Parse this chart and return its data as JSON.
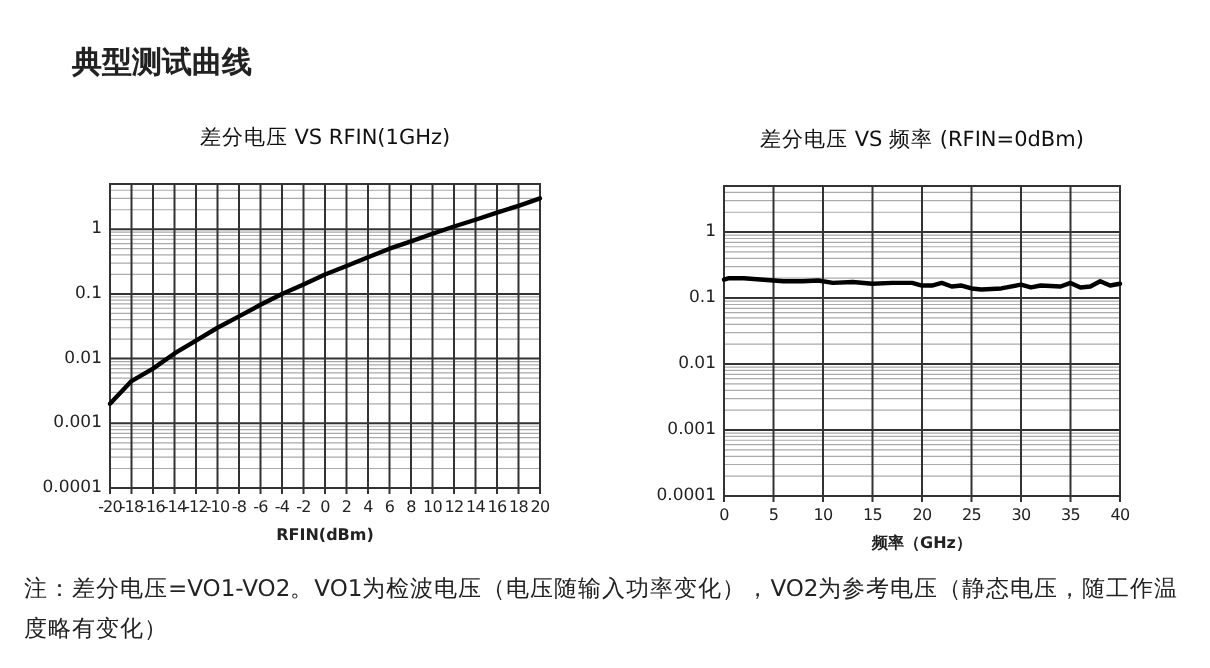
{
  "chart_data": [
    {
      "type": "line",
      "title": "差分电压 VS RFIN(1GHz)",
      "xlabel": "RFIN(dBm)",
      "log": "y",
      "grid": true,
      "marker": "none",
      "line_style": "solid",
      "annotations": [
        "典型测试曲线",
        "注：差分电压=VO1-VO2。VO1为检波电压（电压随输入功率变化），VO2为参考电压（静态电压，随工作温度略有变化）"
      ],
      "xlim": [
        -20,
        20
      ],
      "xticks": [
        -20,
        -18,
        -16,
        -14,
        -12,
        -10,
        -8,
        -6,
        -4,
        -2,
        0,
        2,
        4,
        6,
        8,
        10,
        12,
        14,
        16,
        18,
        20
      ],
      "ylim": [
        0.0001,
        5
      ],
      "yticks": [
        0.0001,
        0.001,
        0.01,
        0.1,
        1
      ],
      "x": [
        -20,
        -18,
        -16,
        -14,
        -12,
        -10,
        -8,
        -6,
        -4,
        -2,
        0,
        2,
        4,
        6,
        8,
        10,
        12,
        14,
        16,
        18,
        20
      ],
      "series": [
        {
          "color": "#000000",
          "values": [
            0.002,
            0.0045,
            0.007,
            0.012,
            0.019,
            0.03,
            0.045,
            0.068,
            0.1,
            0.14,
            0.2,
            0.27,
            0.37,
            0.5,
            0.65,
            0.85,
            1.1,
            1.4,
            1.8,
            2.3,
            3
          ]
        }
      ]
    },
    {
      "type": "line",
      "title": "差分电压 VS 频率 (RFIN=0dBm)",
      "xlabel": "频率（GHz）",
      "log": "y",
      "grid": true,
      "marker": "none",
      "line_style": "solid",
      "xlim": [
        0,
        40
      ],
      "xticks": [
        0,
        5,
        10,
        15,
        20,
        25,
        30,
        35,
        40
      ],
      "ylim": [
        0.0001,
        5
      ],
      "yticks": [
        0.0001,
        0.001,
        0.01,
        0.1,
        1
      ],
      "x": [
        0,
        0.5,
        2,
        4,
        6,
        8,
        9.5,
        11,
        13,
        15,
        17,
        19,
        20,
        21,
        22,
        23,
        24,
        25,
        26,
        28,
        30,
        31,
        32,
        34,
        35,
        36,
        37,
        38,
        39,
        40
      ],
      "series": [
        {
          "color": "#000000",
          "values": [
            0.19,
            0.2,
            0.2,
            0.19,
            0.18,
            0.18,
            0.185,
            0.17,
            0.175,
            0.165,
            0.17,
            0.17,
            0.155,
            0.155,
            0.17,
            0.15,
            0.155,
            0.14,
            0.135,
            0.14,
            0.16,
            0.145,
            0.155,
            0.15,
            0.17,
            0.145,
            0.15,
            0.18,
            0.155,
            0.165
          ]
        }
      ]
    }
  ]
}
